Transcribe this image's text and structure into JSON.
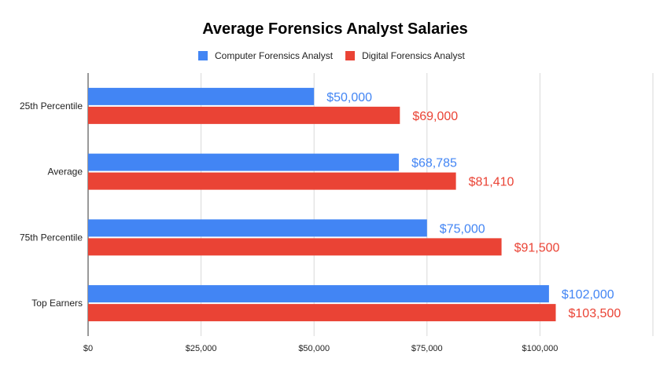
{
  "chart_data": {
    "type": "bar",
    "orientation": "horizontal",
    "title": "Average Forensics Analyst Salaries",
    "categories": [
      "25th Percentile",
      "Average",
      "75th Percentile",
      "Top Earners"
    ],
    "series": [
      {
        "name": "Computer Forensics Analyst",
        "color": "#4285f4",
        "values": [
          50000,
          68785,
          75000,
          102000
        ],
        "labels": [
          "$50,000",
          "$68,785",
          "$75,000",
          "$102,000"
        ]
      },
      {
        "name": "Digital Forensics Analyst",
        "color": "#ea4335",
        "values": [
          69000,
          81410,
          91500,
          103500
        ],
        "labels": [
          "$69,000",
          "$81,410",
          "$91,500",
          "$103,500"
        ]
      }
    ],
    "xlim": [
      0,
      125000
    ],
    "x_ticks": [
      0,
      25000,
      50000,
      75000,
      100000
    ],
    "x_tick_labels": [
      "$0",
      "$25,000",
      "$50,000",
      "$75,000",
      "$100,000"
    ],
    "grid": "vertical",
    "legend": "top"
  }
}
